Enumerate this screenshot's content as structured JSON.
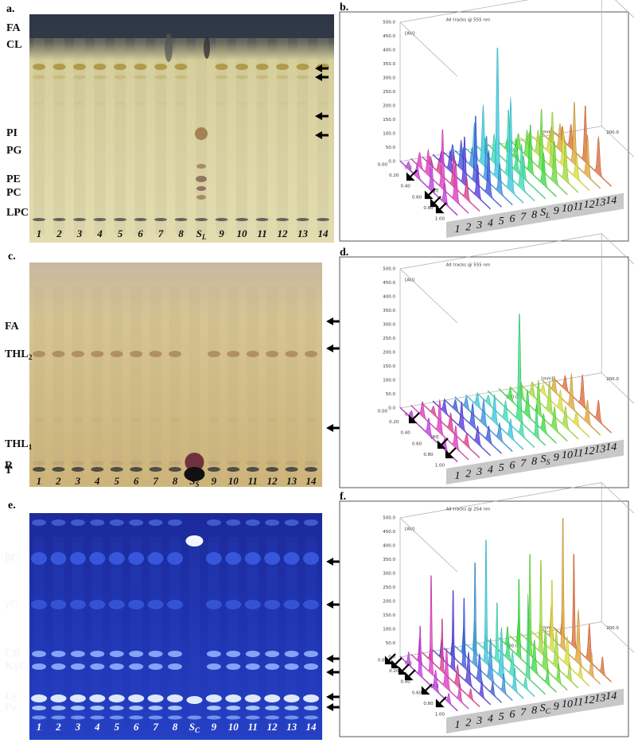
{
  "panels": [
    {
      "letter": "a.",
      "labels": [
        "FA",
        "CL",
        "PI",
        "PG",
        "PE",
        "PC",
        "LPC"
      ],
      "lanes": [
        "1",
        "2",
        "3",
        "4",
        "5",
        "6",
        "7",
        "8",
        {
          "text": "S",
          "sub": "L"
        },
        "9",
        "10",
        "11",
        "12",
        "13",
        "14"
      ]
    },
    {
      "letter": "b.",
      "title": "All tracks @ 555 nm",
      "au": "[AU]",
      "rf": "[Rf]",
      "mm": "[mm]",
      "au_ticks": [
        "0.0",
        "50.0",
        "100.0",
        "150.0",
        "200.0",
        "250.0",
        "300.0",
        "350.0",
        "400.0",
        "450.0",
        "500.0"
      ],
      "rf_ticks": [
        "0.00",
        "0.20",
        "0.40",
        "0.60",
        "0.80",
        "1.00"
      ],
      "mm_ticks": [
        "0.0",
        "100.0",
        "200.0"
      ],
      "lanes": [
        "1",
        "2",
        "3",
        "4",
        "5",
        "6",
        "7",
        "8",
        {
          "text": "S",
          "sub": "L"
        },
        "9",
        "10",
        "11",
        "12",
        "13",
        "14"
      ]
    },
    {
      "letter": "c.",
      "labels": [
        "FA",
        {
          "text": "THL",
          "sub": "2"
        },
        {
          "text": "THL",
          "sub": "1"
        },
        "R",
        "T"
      ],
      "lanes": [
        "1",
        "2",
        "3",
        "4",
        "5",
        "6",
        "7",
        "8",
        {
          "text": "S",
          "sub": "S"
        },
        "9",
        "10",
        "11",
        "12",
        "13",
        "14"
      ]
    },
    {
      "letter": "d.",
      "title": "All tracks @ 555 nm",
      "au": "[AU]",
      "rf": "[Rf]",
      "mm": "[mm]",
      "au_ticks": [
        "0.0",
        "50.0",
        "100.0",
        "150.0",
        "200.0",
        "250.0",
        "300.0",
        "350.0",
        "400.0",
        "450.0",
        "500.0"
      ],
      "rf_ticks": [
        "0.00",
        "0.20",
        "0.40",
        "0.60",
        "0.80",
        "1.00"
      ],
      "mm_ticks": [
        "0.0",
        "100.0",
        "200.0"
      ],
      "lanes": [
        "1",
        "2",
        "3",
        "4",
        "5",
        "6",
        "7",
        "8",
        {
          "text": "S",
          "sub": "S"
        },
        "9",
        "10",
        "11",
        "12",
        "13",
        "14"
      ]
    },
    {
      "letter": "e.",
      "labels": [
        "βC",
        "γC",
        "CB",
        "KγC",
        "Ly",
        "Pe"
      ],
      "lanes": [
        "1",
        "2",
        "3",
        "4",
        "5",
        "6",
        "7",
        "8",
        {
          "text": "S",
          "sub": "C"
        },
        "9",
        "10",
        "11",
        "12",
        "13",
        "14"
      ]
    },
    {
      "letter": "f.",
      "title": "All tracks @ 254 nm",
      "au": "[AU]",
      "rf": "[Rf]",
      "mm": "[mm]",
      "au_ticks": [
        "0.0",
        "50.0",
        "100.0",
        "150.0",
        "200.0",
        "250.0",
        "300.0",
        "350.0",
        "400.0",
        "450.0",
        "500.0"
      ],
      "rf_ticks": [
        "0.00",
        "0.20",
        "0.40",
        "0.60",
        "0.80",
        "1.00"
      ],
      "mm_ticks": [
        "0.0",
        "100.0",
        "200.0"
      ],
      "lanes": [
        "1",
        "2",
        "3",
        "4",
        "5",
        "6",
        "7",
        "8",
        {
          "text": "S",
          "sub": "C"
        },
        "9",
        "10",
        "11",
        "12",
        "13",
        "14"
      ]
    }
  ]
}
